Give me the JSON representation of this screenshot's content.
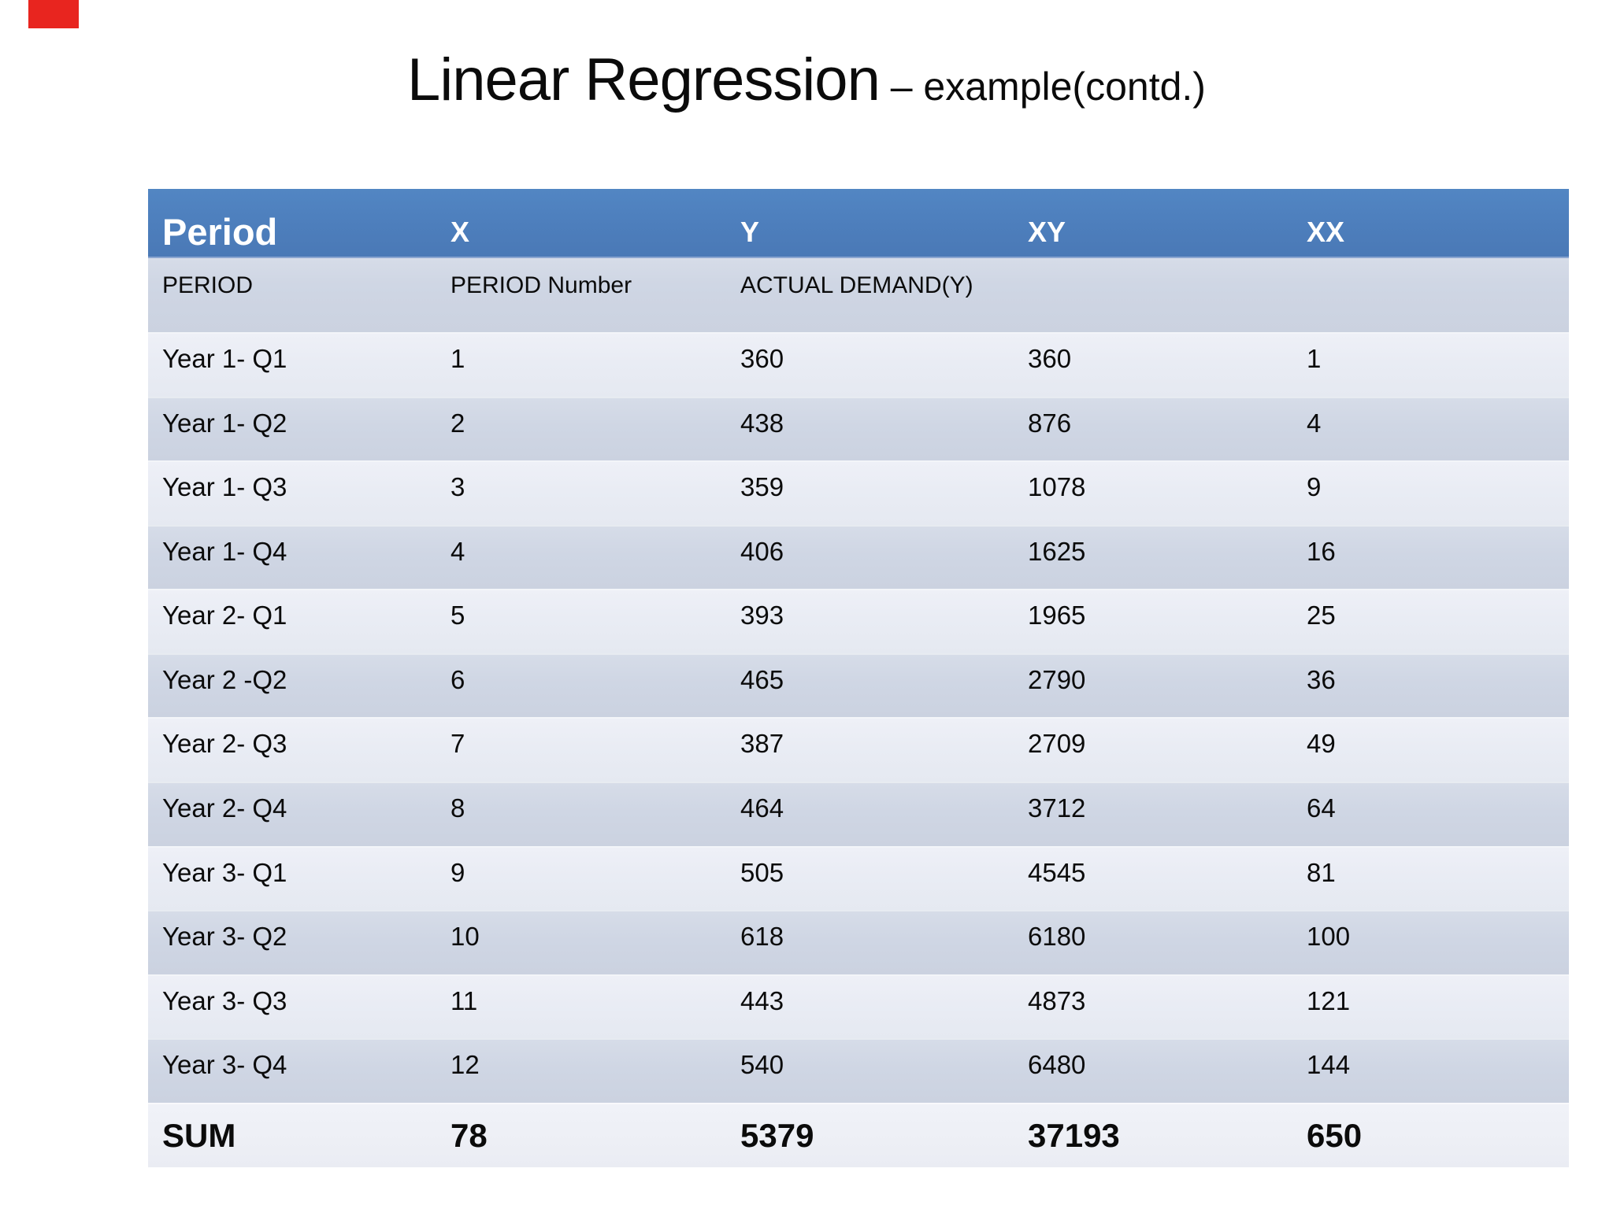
{
  "slide": {
    "title_main": "Linear Regression",
    "title_suffix": " – example(contd.)"
  },
  "colors": {
    "header_bg": "#4d7ebc",
    "header_text": "#ffffff",
    "band_dark": "#cfd6e4",
    "band_light": "#e9ecf4",
    "sum_bg": "#edeff5",
    "text": "#0b0b0b",
    "marker_red": "#e8251f"
  },
  "table": {
    "columns": [
      "Period",
      "X",
      "Y",
      "XY",
      "XX"
    ],
    "subheader": [
      "PERIOD",
      "PERIOD Number",
      "ACTUAL DEMAND(Y)",
      "",
      ""
    ],
    "rows": [
      [
        "Year 1- Q1",
        "1",
        "360",
        "360",
        "1"
      ],
      [
        "Year 1- Q2",
        "2",
        "438",
        "876",
        "4"
      ],
      [
        "Year 1- Q3",
        "3",
        "359",
        "1078",
        "9"
      ],
      [
        "Year 1- Q4",
        "4",
        "406",
        "1625",
        "16"
      ],
      [
        "Year 2- Q1",
        "5",
        "393",
        "1965",
        "25"
      ],
      [
        "Year 2 -Q2",
        "6",
        "465",
        "2790",
        "36"
      ],
      [
        "Year 2- Q3",
        "7",
        "387",
        "2709",
        "49"
      ],
      [
        "Year 2- Q4",
        "8",
        "464",
        "3712",
        "64"
      ],
      [
        "Year 3- Q1",
        "9",
        "505",
        "4545",
        "81"
      ],
      [
        "Year 3- Q2",
        "10",
        "618",
        "6180",
        "100"
      ],
      [
        "Year 3- Q3",
        "11",
        "443",
        "4873",
        "121"
      ],
      [
        "Year 3- Q4",
        "12",
        "540",
        "6480",
        "144"
      ]
    ],
    "sum": [
      "SUM",
      "78",
      "5379",
      "37193",
      "650"
    ]
  }
}
